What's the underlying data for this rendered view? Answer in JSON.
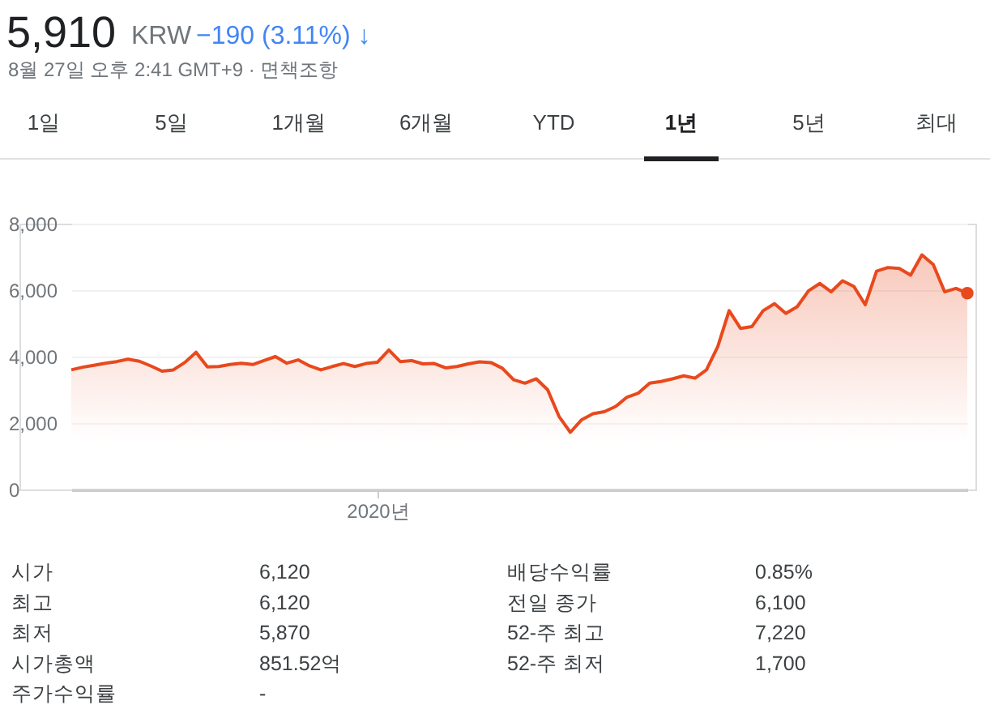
{
  "chart_data": {
    "type": "area",
    "title": "5,910",
    "subtitle": [
      "KRW",
      "−190 (3.11%) ↓",
      "8월 27일 오후 2:41 GMT+9 · 면책조항"
    ],
    "annotations": [
      "1일",
      "5일",
      "1개월",
      "6개월",
      "YTD",
      "1년",
      "5년",
      "최대",
      "시가",
      "6,120",
      "배당수익률",
      "0.85%",
      "최고",
      "6,120",
      "전일 종가",
      "6,100",
      "최저",
      "5,870",
      "52-주 최고",
      "7,220",
      "시가총액",
      "851.52억",
      "52-주 최저",
      "1,700",
      "주가수익률",
      "-"
    ],
    "categories": [
      null,
      null,
      null,
      null,
      null,
      null,
      null,
      null,
      null,
      null,
      null,
      null,
      null,
      null,
      null,
      null,
      null,
      null,
      null,
      null,
      null,
      null,
      null,
      null,
      null,
      null,
      null,
      "2020년",
      null,
      null,
      null,
      null,
      null,
      null,
      null,
      null,
      null,
      null,
      null,
      null,
      null,
      null,
      null,
      null,
      null,
      null,
      null,
      null,
      null,
      null,
      null,
      null,
      null,
      null,
      null,
      null,
      null,
      null,
      null,
      null,
      null,
      null,
      null,
      null,
      null,
      null,
      null,
      null,
      null,
      null,
      null,
      null,
      null,
      null,
      null,
      null,
      null,
      null,
      null,
      null
    ],
    "series": [
      {
        "color": "#e8491d",
        "values": [
          3600,
          3680,
          3740,
          3800,
          3850,
          3920,
          3860,
          3720,
          3560,
          3600,
          3820,
          4130,
          3690,
          3700,
          3760,
          3800,
          3760,
          3880,
          4000,
          3800,
          3900,
          3720,
          3600,
          3700,
          3790,
          3700,
          3790,
          3830,
          4200,
          3850,
          3880,
          3780,
          3790,
          3660,
          3700,
          3780,
          3840,
          3820,
          3650,
          3300,
          3200,
          3330,
          3000,
          2200,
          1720,
          2100,
          2280,
          2340,
          2500,
          2780,
          2900,
          3200,
          3250,
          3330,
          3420,
          3350,
          3600,
          4300,
          5380,
          4850,
          4900,
          5380,
          5590,
          5300,
          5500,
          5980,
          6200,
          5950,
          6280,
          6110,
          5560,
          6570,
          6680,
          6650,
          6450,
          7060,
          6770,
          5950,
          6050,
          5910
        ]
      }
    ],
    "ylim": [
      0,
      8000
    ],
    "yticks": [
      0,
      {
        "value": 2000,
        "label": "2,000"
      },
      {
        "value": 4000,
        "label": "4,000"
      },
      {
        "value": 6000,
        "label": "6,000"
      },
      {
        "value": 8000,
        "label": "8,000"
      }
    ],
    "grid": "y"
  }
}
